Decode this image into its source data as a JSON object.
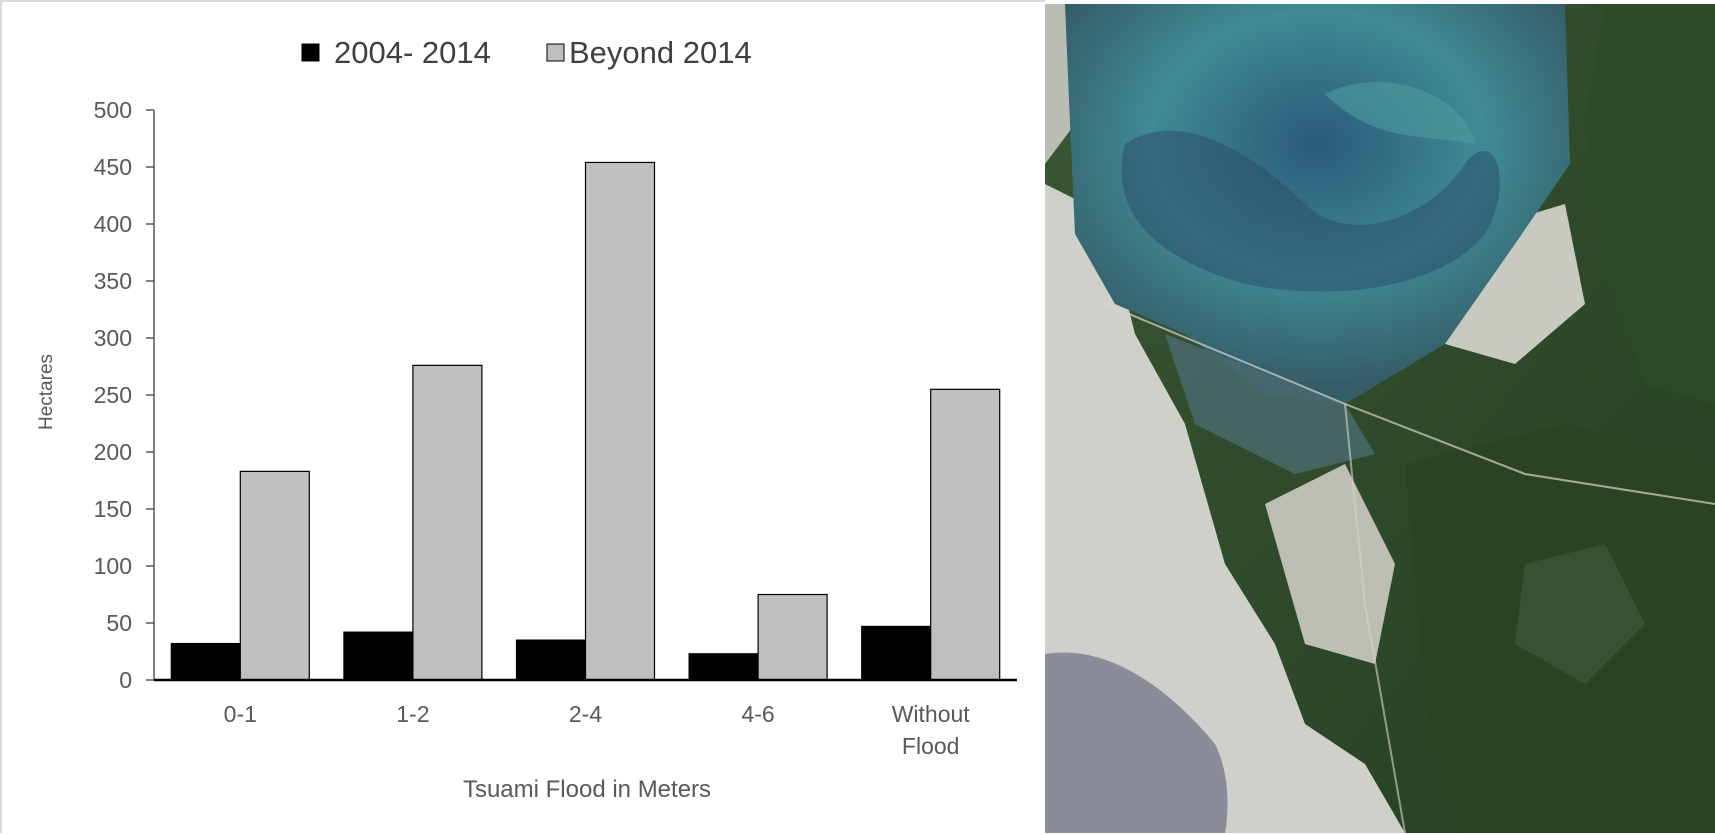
{
  "chart_data": {
    "type": "bar",
    "categories": [
      [
        "0-1"
      ],
      [
        "1-2"
      ],
      [
        "2-4"
      ],
      [
        "4-6"
      ],
      [
        "Without",
        "Flood"
      ]
    ],
    "series": [
      {
        "name": "2004- 2014",
        "color": "#000000",
        "values": [
          32,
          42,
          35,
          23,
          47
        ]
      },
      {
        "name": "Beyond 2014",
        "color": "#bfbfbf",
        "values": [
          183,
          276,
          454,
          75,
          255
        ]
      }
    ],
    "xlabel": "Tsuami Flood in Meters",
    "ylabel": "Hectares",
    "ylim": [
      0,
      500
    ],
    "yticks": [
      0,
      50,
      100,
      150,
      200,
      250,
      300,
      350,
      400,
      450,
      500
    ],
    "grid": false,
    "legend_position": "top-center"
  },
  "satellite_image": {
    "colors": {
      "water_deep": "#2f5f7a",
      "water_turquoise": "#3f8a94",
      "forest": "#2c4a26",
      "urban": "#d9d9d4",
      "lagoon": "#8a8c9a"
    }
  }
}
